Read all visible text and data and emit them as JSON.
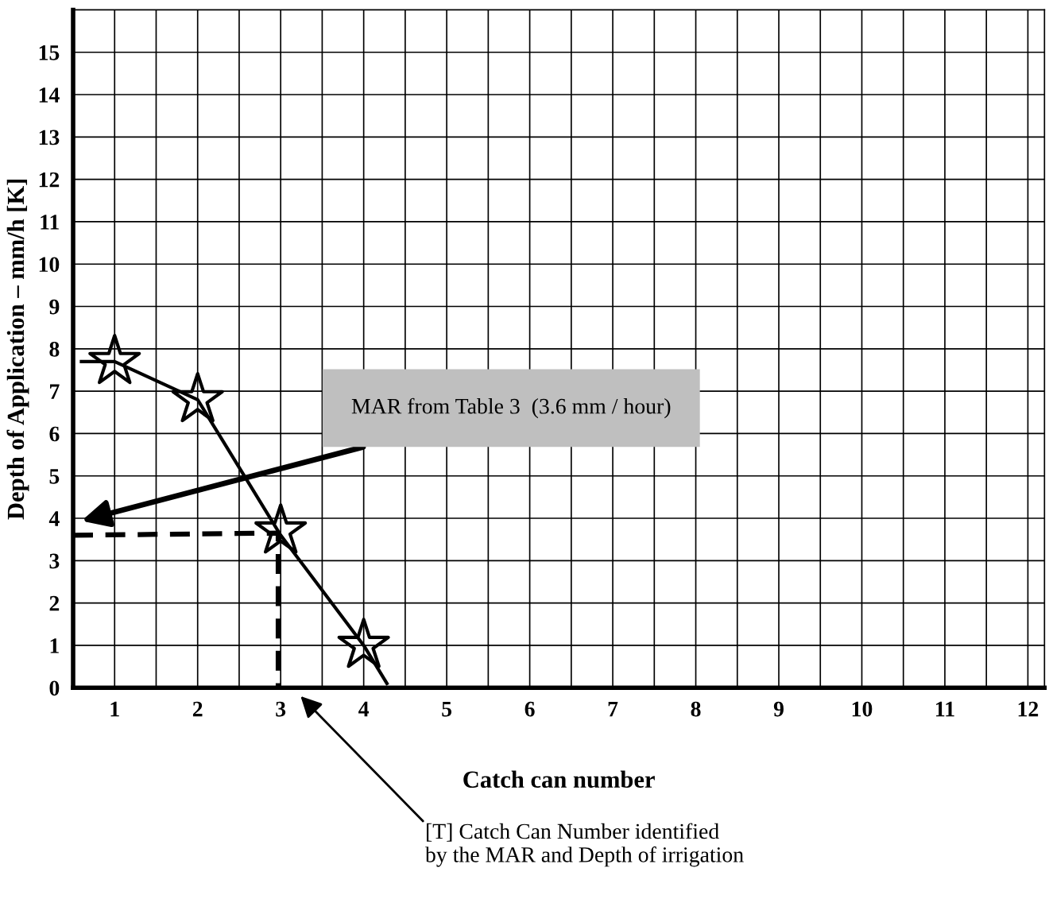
{
  "chart_data": {
    "type": "line",
    "xlabel": "Catch can number",
    "ylabel": "Depth of Application – mm/h [K]",
    "xlim": [
      0.5,
      12.2
    ],
    "ylim": [
      0,
      16
    ],
    "xticks": [
      {
        "value": 0.5,
        "label": null
      },
      1,
      {
        "value": 1.5,
        "label": null
      },
      2,
      {
        "value": 2.5,
        "label": null
      },
      3,
      {
        "value": 3.5,
        "label": null
      },
      4,
      {
        "value": 4.5,
        "label": null
      },
      5,
      {
        "value": 5.5,
        "label": null
      },
      6,
      {
        "value": 6.5,
        "label": null
      },
      7,
      {
        "value": 7.5,
        "label": null
      },
      8,
      {
        "value": 8.5,
        "label": null
      },
      9,
      {
        "value": 9.5,
        "label": null
      },
      10,
      {
        "value": 10.5,
        "label": null
      },
      11,
      {
        "value": 11.5,
        "label": null
      },
      12
    ],
    "yticks": [
      0,
      1,
      2,
      3,
      4,
      5,
      6,
      7,
      8,
      9,
      10,
      11,
      12,
      13,
      14,
      15
    ],
    "grid": true,
    "series": [
      {
        "color": "#000000",
        "line_style": "solid",
        "marker": "none",
        "x": [
          0.6,
          1,
          2,
          3,
          4,
          4.28
        ],
        "values": [
          7.7,
          7.7,
          6.8,
          3.6,
          1.0,
          0.1
        ]
      },
      {
        "type": "scatter",
        "color": "#000000",
        "marker": "star",
        "x": [
          1,
          2,
          3,
          4
        ],
        "values": [
          7.7,
          6.8,
          3.7,
          1.0
        ]
      },
      {
        "color": "#000000",
        "line_style": "dashed",
        "marker": "none",
        "x": [
          0.5,
          2.97,
          2.97
        ],
        "values": [
          3.6,
          3.65,
          0
        ]
      }
    ],
    "annotations": [
      "MAR from Table 3  (3.6 mm / hour)",
      "[T] Catch Can Number identified\nby the MAR and Depth of irrigation"
    ]
  }
}
